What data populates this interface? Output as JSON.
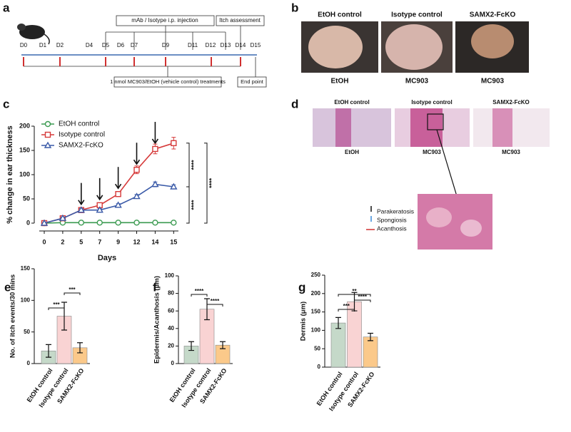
{
  "panel_labels": [
    "a",
    "b",
    "c",
    "d",
    "e",
    "f",
    "g"
  ],
  "timeline": {
    "days": [
      "D0",
      "D1",
      "D2",
      "D4",
      "D5",
      "D6",
      "D7",
      "D9",
      "D11",
      "D12",
      "D13",
      "D14",
      "D15"
    ],
    "injection_label": "mAb / Isotype i.p. injection",
    "itch_label": "Itch assessment",
    "treatment_label": "1 nmol MC903/EtOH (vehicle control) treatments",
    "end_label": "End point"
  },
  "photos": {
    "top_labels": [
      "EtOH control",
      "Isotype control",
      "SAMX2-FcKO"
    ],
    "bottom_labels": [
      "EtOH",
      "MC903",
      "MC903"
    ]
  },
  "histology": {
    "top_labels": [
      "EtOH control",
      "Isotype control",
      "SAMX2-FcKO"
    ],
    "bottom_labels": [
      "EtOH",
      "MC903",
      "MC903"
    ],
    "legend": [
      "Parakeratosis",
      "Spongiosis",
      "Acanthosis"
    ]
  },
  "chart_data": [
    {
      "type": "line",
      "categories": [
        0,
        2,
        5,
        7,
        9,
        12,
        14,
        15
      ],
      "xlabel": "Days",
      "ylabel": "% change in ear thickness",
      "ylim": [
        0,
        200
      ],
      "yticks": [
        0,
        50,
        100,
        150,
        200
      ],
      "series": [
        {
          "name": "EtOH control",
          "color": "#3a9a50",
          "marker": "circle",
          "values": [
            0,
            1,
            1,
            1,
            1,
            1,
            1,
            1
          ],
          "errors": [
            0,
            1,
            1,
            1,
            1,
            1,
            1,
            1
          ]
        },
        {
          "name": "Isotype control",
          "color": "#d63a3a",
          "marker": "square",
          "values": [
            0,
            10,
            27,
            37,
            60,
            110,
            153,
            165
          ],
          "errors": [
            0,
            3,
            3,
            4,
            5,
            8,
            10,
            12
          ]
        },
        {
          "name": "SAMX2-FcKO",
          "color": "#3a5aa8",
          "marker": "triangle",
          "values": [
            0,
            10,
            27,
            27,
            37,
            55,
            80,
            75
          ],
          "errors": [
            0,
            2,
            3,
            3,
            3,
            4,
            5,
            4
          ]
        }
      ],
      "annotations": [
        "****",
        "****",
        "****"
      ]
    },
    {
      "type": "bar",
      "categories": [
        "EtOH control",
        "Isotype control",
        "SAMX2-FcKO"
      ],
      "ylabel": "No. of itch events/30 mins",
      "values": [
        20,
        75,
        25
      ],
      "errors": [
        10,
        22,
        8
      ],
      "colors": [
        "#c5d9c9",
        "#f9d3d3",
        "#fbc98a"
      ],
      "ylim": [
        0,
        150
      ],
      "yticks": [
        0,
        50,
        100,
        150
      ],
      "annotations": [
        "***",
        "***"
      ]
    },
    {
      "type": "bar",
      "categories": [
        "EtOH control",
        "Isotype control",
        "SAMX2-FcKO"
      ],
      "ylabel": "Epidermis/Acanthosis (μm)",
      "values": [
        20,
        62,
        21
      ],
      "errors": [
        5,
        12,
        4
      ],
      "colors": [
        "#c5d9c9",
        "#f9d3d3",
        "#fbc98a"
      ],
      "ylim": [
        0,
        100
      ],
      "yticks": [
        0,
        20,
        40,
        60,
        80,
        100
      ],
      "annotations": [
        "****",
        "****"
      ]
    },
    {
      "type": "bar",
      "categories": [
        "EtOH control",
        "Isotype control",
        "SAMX2-FcKO"
      ],
      "ylabel": "Dermis (μm)",
      "values": [
        120,
        178,
        82
      ],
      "errors": [
        15,
        25,
        10
      ],
      "colors": [
        "#c5d9c9",
        "#f9d3d3",
        "#fbc98a"
      ],
      "ylim": [
        0,
        250
      ],
      "yticks": [
        0,
        50,
        100,
        150,
        200,
        250
      ],
      "annotations": [
        "***",
        "****",
        "**"
      ]
    }
  ]
}
